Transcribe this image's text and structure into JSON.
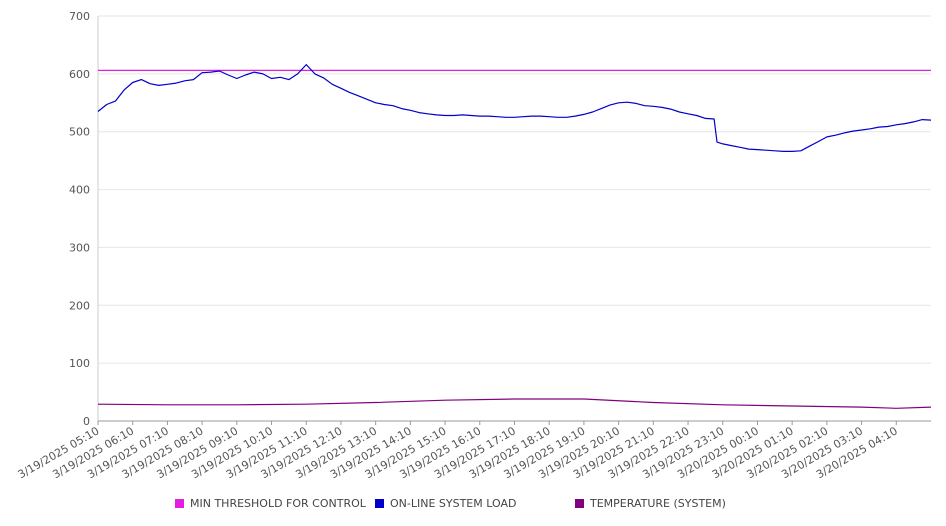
{
  "chart_data": {
    "type": "line",
    "ylim": [
      0,
      700
    ],
    "yticks": [
      0,
      100,
      200,
      300,
      400,
      500,
      600,
      700
    ],
    "xtick_labels": [
      "3/19/2025 05:10",
      "3/19/2025 06:10",
      "3/19/2025 07:10",
      "3/19/2025 08:10",
      "3/19/2025 09:10",
      "3/19/2025 10:10",
      "3/19/2025 11:10",
      "3/19/2025 12:10",
      "3/19/2025 13:10",
      "3/19/2025 14:10",
      "3/19/2025 15:10",
      "3/19/2025 16:10",
      "3/19/2025 17:10",
      "3/19/2025 18:10",
      "3/19/2025 19:10",
      "3/19/2025 20:10",
      "3/19/2025 21:10",
      "3/19/2025 22:10",
      "3/19/2025 23:10",
      "3/20/2025 00:10",
      "3/20/2025 01:10",
      "3/20/2025 02:10",
      "3/20/2025 03:10",
      "3/20/2025 04:10"
    ],
    "x_end": "3/20/2025 05:10",
    "grid": true,
    "legend_position": "bottom",
    "series": [
      {
        "name": "MIN THRESHOLD FOR CONTROL",
        "color": "#e11ee1",
        "points": [
          [
            "3/19/2025 05:10",
            606
          ],
          [
            "3/20/2025 05:10",
            606
          ]
        ]
      },
      {
        "name": "ON-LINE SYSTEM LOAD",
        "color": "#0000cc",
        "points": [
          [
            "3/19/2025 05:10",
            535
          ],
          [
            "3/19/2025 05:25",
            547
          ],
          [
            "3/19/2025 05:40",
            553
          ],
          [
            "3/19/2025 05:55",
            572
          ],
          [
            "3/19/2025 06:10",
            585
          ],
          [
            "3/19/2025 06:25",
            590
          ],
          [
            "3/19/2025 06:40",
            583
          ],
          [
            "3/19/2025 06:55",
            580
          ],
          [
            "3/19/2025 07:10",
            582
          ],
          [
            "3/19/2025 07:25",
            584
          ],
          [
            "3/19/2025 07:40",
            588
          ],
          [
            "3/19/2025 07:55",
            590
          ],
          [
            "3/19/2025 08:10",
            602
          ],
          [
            "3/19/2025 08:25",
            603
          ],
          [
            "3/19/2025 08:40",
            605
          ],
          [
            "3/19/2025 08:55",
            598
          ],
          [
            "3/19/2025 09:10",
            592
          ],
          [
            "3/19/2025 09:25",
            598
          ],
          [
            "3/19/2025 09:40",
            603
          ],
          [
            "3/19/2025 09:55",
            600
          ],
          [
            "3/19/2025 10:10",
            592
          ],
          [
            "3/19/2025 10:25",
            594
          ],
          [
            "3/19/2025 10:40",
            590
          ],
          [
            "3/19/2025 10:55",
            600
          ],
          [
            "3/19/2025 11:10",
            616
          ],
          [
            "3/19/2025 11:25",
            600
          ],
          [
            "3/19/2025 11:40",
            593
          ],
          [
            "3/19/2025 11:55",
            582
          ],
          [
            "3/19/2025 12:10",
            575
          ],
          [
            "3/19/2025 12:25",
            568
          ],
          [
            "3/19/2025 12:40",
            562
          ],
          [
            "3/19/2025 12:55",
            556
          ],
          [
            "3/19/2025 13:10",
            550
          ],
          [
            "3/19/2025 13:25",
            547
          ],
          [
            "3/19/2025 13:40",
            545
          ],
          [
            "3/19/2025 13:55",
            540
          ],
          [
            "3/19/2025 14:10",
            537
          ],
          [
            "3/19/2025 14:25",
            533
          ],
          [
            "3/19/2025 14:40",
            531
          ],
          [
            "3/19/2025 14:55",
            529
          ],
          [
            "3/19/2025 15:10",
            528
          ],
          [
            "3/19/2025 15:25",
            528
          ],
          [
            "3/19/2025 15:40",
            529
          ],
          [
            "3/19/2025 15:55",
            528
          ],
          [
            "3/19/2025 16:10",
            527
          ],
          [
            "3/19/2025 16:25",
            527
          ],
          [
            "3/19/2025 16:40",
            526
          ],
          [
            "3/19/2025 16:55",
            525
          ],
          [
            "3/19/2025 17:10",
            525
          ],
          [
            "3/19/2025 17:25",
            526
          ],
          [
            "3/19/2025 17:40",
            527
          ],
          [
            "3/19/2025 17:55",
            527
          ],
          [
            "3/19/2025 18:10",
            526
          ],
          [
            "3/19/2025 18:25",
            525
          ],
          [
            "3/19/2025 18:40",
            525
          ],
          [
            "3/19/2025 18:55",
            527
          ],
          [
            "3/19/2025 19:10",
            530
          ],
          [
            "3/19/2025 19:25",
            534
          ],
          [
            "3/19/2025 19:40",
            540
          ],
          [
            "3/19/2025 19:55",
            546
          ],
          [
            "3/19/2025 20:10",
            550
          ],
          [
            "3/19/2025 20:25",
            551
          ],
          [
            "3/19/2025 20:40",
            549
          ],
          [
            "3/19/2025 20:55",
            545
          ],
          [
            "3/19/2025 21:10",
            544
          ],
          [
            "3/19/2025 21:25",
            542
          ],
          [
            "3/19/2025 21:40",
            539
          ],
          [
            "3/19/2025 21:55",
            534
          ],
          [
            "3/19/2025 22:10",
            531
          ],
          [
            "3/19/2025 22:25",
            528
          ],
          [
            "3/19/2025 22:40",
            523
          ],
          [
            "3/19/2025 22:55",
            522
          ],
          [
            "3/19/2025 23:00",
            482
          ],
          [
            "3/19/2025 23:10",
            479
          ],
          [
            "3/19/2025 23:25",
            476
          ],
          [
            "3/19/2025 23:40",
            473
          ],
          [
            "3/19/2025 23:55",
            470
          ],
          [
            "3/20/2025 00:10",
            469
          ],
          [
            "3/20/2025 00:25",
            468
          ],
          [
            "3/20/2025 00:40",
            467
          ],
          [
            "3/20/2025 00:55",
            466
          ],
          [
            "3/20/2025 01:10",
            466
          ],
          [
            "3/20/2025 01:25",
            467
          ],
          [
            "3/20/2025 01:40",
            475
          ],
          [
            "3/20/2025 01:55",
            483
          ],
          [
            "3/20/2025 02:10",
            491
          ],
          [
            "3/20/2025 02:25",
            494
          ],
          [
            "3/20/2025 02:40",
            498
          ],
          [
            "3/20/2025 02:55",
            501
          ],
          [
            "3/20/2025 03:10",
            503
          ],
          [
            "3/20/2025 03:25",
            505
          ],
          [
            "3/20/2025 03:40",
            508
          ],
          [
            "3/20/2025 03:55",
            509
          ],
          [
            "3/20/2025 04:10",
            512
          ],
          [
            "3/20/2025 04:25",
            514
          ],
          [
            "3/20/2025 04:40",
            517
          ],
          [
            "3/20/2025 04:55",
            521
          ],
          [
            "3/20/2025 05:10",
            520
          ]
        ]
      },
      {
        "name": "TEMPERATURE (SYSTEM)",
        "color": "#800080",
        "points": [
          [
            "3/19/2025 05:10",
            29
          ],
          [
            "3/19/2025 07:10",
            28
          ],
          [
            "3/19/2025 09:10",
            28
          ],
          [
            "3/19/2025 11:10",
            29
          ],
          [
            "3/19/2025 13:10",
            32
          ],
          [
            "3/19/2025 15:10",
            36
          ],
          [
            "3/19/2025 17:10",
            38
          ],
          [
            "3/19/2025 19:10",
            38
          ],
          [
            "3/19/2025 21:10",
            32
          ],
          [
            "3/19/2025 23:10",
            28
          ],
          [
            "3/20/2025 01:10",
            26
          ],
          [
            "3/20/2025 03:10",
            24
          ],
          [
            "3/20/2025 04:10",
            22
          ],
          [
            "3/20/2025 05:10",
            24
          ]
        ]
      }
    ]
  }
}
